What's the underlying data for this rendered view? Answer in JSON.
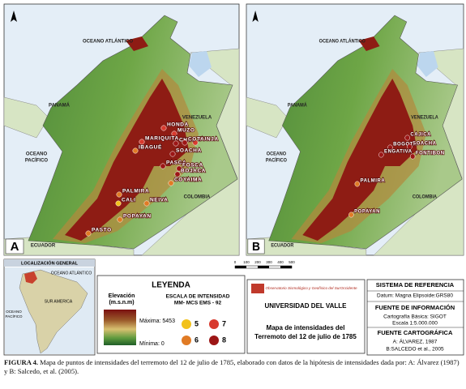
{
  "panels": [
    {
      "letter": "A",
      "regions": {
        "atlantic": "OCEANO ATLÁNTICO",
        "panama": "PANAMÁ",
        "venezuela": "VENEZUELA",
        "pacific": [
          "OCEANO",
          "PACÍFICO"
        ],
        "colombia": "COLOMBIA",
        "ecuador": "ECUADOR"
      },
      "cities": [
        {
          "name": "TUNJA",
          "intensity": 7
        },
        {
          "name": "HONDA",
          "intensity": 7
        },
        {
          "name": "MUZO",
          "intensity": 7
        },
        {
          "name": "CHIA",
          "intensity": 8
        },
        {
          "name": "COTA",
          "intensity": 8
        },
        {
          "name": "MARIQUITA",
          "intensity": 7
        },
        {
          "name": "IBAGUÉ",
          "intensity": 6
        },
        {
          "name": "SOACHA",
          "intensity": 8
        },
        {
          "name": "PASCA",
          "intensity": 8
        },
        {
          "name": "FOSCA",
          "intensity": 8
        },
        {
          "name": "BOJACA",
          "intensity": 8
        },
        {
          "name": "PALMIRA",
          "intensity": 6
        },
        {
          "name": "CALI",
          "intensity": 5
        },
        {
          "name": "COYAIMA",
          "intensity": 6
        },
        {
          "name": "POPAYAN",
          "intensity": 6
        },
        {
          "name": "NEIVA",
          "intensity": 6
        },
        {
          "name": "PASTO",
          "intensity": 6
        }
      ]
    },
    {
      "letter": "B",
      "regions": {
        "atlantic": "OCEANO ATLÁNTICO",
        "panama": "PANAMÁ",
        "venezuela": "VENEZUELA",
        "pacific": [
          "OCEANO",
          "PACÍFICO"
        ],
        "colombia": "COLOMBIA",
        "ecuador": "ECUADOR"
      },
      "cities": [
        {
          "name": "CAJICA",
          "intensity": 8
        },
        {
          "name": "BOGOTA",
          "intensity": 8
        },
        {
          "name": "SOACHA",
          "intensity": 8
        },
        {
          "name": "FONTIBON",
          "intensity": 8
        },
        {
          "name": "ENGATIVA",
          "intensity": 8
        },
        {
          "name": "PALMIRA",
          "intensity": 6
        },
        {
          "name": "POPAYAN",
          "intensity": 6
        }
      ]
    }
  ],
  "scale_bar": {
    "ticks": [
      "0",
      "100",
      "200",
      "300",
      "400",
      "500"
    ]
  },
  "locator": {
    "title": "LOCALIZACIÓN GENERAL",
    "atlantic": "OCEANO ATLÁNTICO",
    "pacific": [
      "OCEANO",
      "PACÍFICO"
    ],
    "continent": "SUR AMERICA"
  },
  "legend": {
    "title": "LEYENDA",
    "elevation_title": [
      "Elevación",
      "(m.s.n.m)"
    ],
    "max_label": "Máxima: 5453",
    "min_label": "Mínima: 0",
    "intensity_title": [
      "ESCALA DE INTENSIDAD",
      "MM- MCS   EMS - 92"
    ],
    "intensities": [
      {
        "value": 5,
        "color": "#f2c21b"
      },
      {
        "value": 6,
        "color": "#e07b25"
      },
      {
        "value": 7,
        "color": "#d83a2e"
      },
      {
        "value": 8,
        "color": "#9c1616"
      }
    ]
  },
  "institution": {
    "observatory": "Observatorio Sismológico y Geofísico del SurOccidente",
    "university": "UNIVERSIDAD DEL VALLE",
    "map_title": [
      "Mapa de intensidades del",
      "Terremoto del 12 de julio de 1785"
    ]
  },
  "reference": {
    "system_title": "SISTEMA DE REFERENCIA",
    "datum": "Datum: Magna  Elipsoide:GRS80",
    "source_title": "FUENTE DE INFORMACIÓN",
    "base": "Cartografía Básica: SIGOT",
    "scale": "Escala 1:5.000.000",
    "carto_title": "FUENTE CARTOGRÁFICA",
    "source_a": "A: ÁLVAREZ, 1987",
    "source_b": "B:SALCEDO  et al., 2005"
  },
  "caption": {
    "label": "FIGURA 4.",
    "lines": [
      " Mapa de puntos de intensidades del terremoto del 12 de julio de 1785, elaborado con datos de la hipótesis de intensidades dada por: A: Álvarez (1987)",
      "y B: Salcedo, et al. (2005)."
    ]
  }
}
